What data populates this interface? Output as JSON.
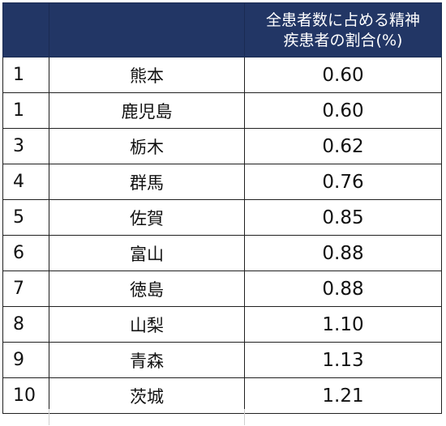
{
  "header": {
    "rank_label": "",
    "prefecture_label": "",
    "value_label_line1": "全患者数に占める精神",
    "value_label_line2": "疾患者の割合(%)"
  },
  "rows": [
    {
      "rank": "1",
      "prefecture": "熊本",
      "value": "0.60"
    },
    {
      "rank": "1",
      "prefecture": "鹿児島",
      "value": "0.60"
    },
    {
      "rank": "3",
      "prefecture": "栃木",
      "value": "0.62"
    },
    {
      "rank": "4",
      "prefecture": "群馬",
      "value": "0.76"
    },
    {
      "rank": "5",
      "prefecture": "佐賀",
      "value": "0.85"
    },
    {
      "rank": "6",
      "prefecture": "富山",
      "value": "0.88"
    },
    {
      "rank": "7",
      "prefecture": "徳島",
      "value": "0.88"
    },
    {
      "rank": "8",
      "prefecture": "山梨",
      "value": "1.10"
    },
    {
      "rank": "9",
      "prefecture": "青森",
      "value": "1.13"
    },
    {
      "rank": "10",
      "prefecture": "茨城",
      "value": "1.21"
    }
  ],
  "colors": {
    "header_bg": "#223665",
    "header_text": "#ffffff",
    "border": "#202020"
  }
}
